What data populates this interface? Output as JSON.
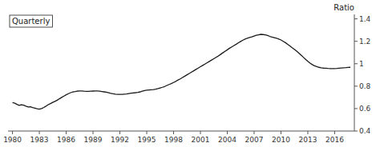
{
  "chart_data": {
    "type": "line",
    "title": "Quarterly",
    "y_label": "Ratio",
    "color": "#1a1a1a",
    "grid": false,
    "xlim": [
      1979.5,
      2018.2
    ],
    "ylim": [
      0.4,
      1.44
    ],
    "xticks": [
      1980,
      1983,
      1986,
      1989,
      1992,
      1995,
      1998,
      2001,
      2004,
      2007,
      2010,
      2013,
      2016
    ],
    "yticks": [
      0.4,
      0.6,
      0.8,
      1,
      1.2,
      1.4
    ],
    "x": [
      1980.0,
      1980.25,
      1980.5,
      1980.75,
      1981.0,
      1981.25,
      1981.5,
      1981.75,
      1982.0,
      1982.25,
      1982.5,
      1982.75,
      1983.0,
      1983.25,
      1983.5,
      1983.75,
      1984.0,
      1984.25,
      1984.5,
      1984.75,
      1985.0,
      1985.25,
      1985.5,
      1985.75,
      1986.0,
      1986.25,
      1986.5,
      1986.75,
      1987.0,
      1987.25,
      1987.5,
      1987.75,
      1988.0,
      1988.25,
      1988.5,
      1988.75,
      1989.0,
      1989.25,
      1989.5,
      1989.75,
      1990.0,
      1990.25,
      1990.5,
      1990.75,
      1991.0,
      1991.25,
      1991.5,
      1991.75,
      1992.0,
      1992.25,
      1992.5,
      1992.75,
      1993.0,
      1993.25,
      1993.5,
      1993.75,
      1994.0,
      1994.25,
      1994.5,
      1994.75,
      1995.0,
      1995.25,
      1995.5,
      1995.75,
      1996.0,
      1996.25,
      1996.5,
      1996.75,
      1997.0,
      1997.25,
      1997.5,
      1997.75,
      1998.0,
      1998.25,
      1998.5,
      1998.75,
      1999.0,
      1999.25,
      1999.5,
      1999.75,
      2000.0,
      2000.25,
      2000.5,
      2000.75,
      2001.0,
      2001.25,
      2001.5,
      2001.75,
      2002.0,
      2002.25,
      2002.5,
      2002.75,
      2003.0,
      2003.25,
      2003.5,
      2003.75,
      2004.0,
      2004.25,
      2004.5,
      2004.75,
      2005.0,
      2005.25,
      2005.5,
      2005.75,
      2006.0,
      2006.25,
      2006.5,
      2006.75,
      2007.0,
      2007.25,
      2007.5,
      2007.75,
      2008.0,
      2008.25,
      2008.5,
      2008.75,
      2009.0,
      2009.25,
      2009.5,
      2009.75,
      2010.0,
      2010.25,
      2010.5,
      2010.75,
      2011.0,
      2011.25,
      2011.5,
      2011.75,
      2012.0,
      2012.25,
      2012.5,
      2012.75,
      2013.0,
      2013.25,
      2013.5,
      2013.75,
      2014.0,
      2014.25,
      2014.5,
      2014.75,
      2015.0,
      2015.25,
      2015.5,
      2015.75,
      2016.0,
      2016.25,
      2016.5,
      2016.75,
      2017.0,
      2017.25,
      2017.5,
      2017.75
    ],
    "values": [
      0.653,
      0.648,
      0.638,
      0.629,
      0.635,
      0.63,
      0.622,
      0.615,
      0.617,
      0.61,
      0.604,
      0.598,
      0.595,
      0.6,
      0.61,
      0.622,
      0.635,
      0.645,
      0.655,
      0.665,
      0.675,
      0.688,
      0.7,
      0.712,
      0.723,
      0.733,
      0.742,
      0.749,
      0.752,
      0.756,
      0.757,
      0.757,
      0.755,
      0.754,
      0.754,
      0.755,
      0.756,
      0.757,
      0.757,
      0.755,
      0.752,
      0.749,
      0.746,
      0.741,
      0.736,
      0.732,
      0.729,
      0.727,
      0.727,
      0.727,
      0.729,
      0.731,
      0.734,
      0.737,
      0.74,
      0.742,
      0.745,
      0.749,
      0.755,
      0.761,
      0.764,
      0.766,
      0.768,
      0.769,
      0.773,
      0.778,
      0.784,
      0.79,
      0.797,
      0.806,
      0.815,
      0.823,
      0.833,
      0.843,
      0.855,
      0.865,
      0.877,
      0.889,
      0.901,
      0.913,
      0.925,
      0.937,
      0.949,
      0.961,
      0.973,
      0.985,
      0.997,
      1.009,
      1.021,
      1.033,
      1.045,
      1.057,
      1.069,
      1.083,
      1.097,
      1.111,
      1.124,
      1.138,
      1.15,
      1.162,
      1.174,
      1.187,
      1.199,
      1.21,
      1.22,
      1.228,
      1.234,
      1.24,
      1.247,
      1.254,
      1.258,
      1.262,
      1.26,
      1.258,
      1.252,
      1.244,
      1.238,
      1.233,
      1.228,
      1.22,
      1.212,
      1.2,
      1.188,
      1.173,
      1.158,
      1.143,
      1.128,
      1.112,
      1.094,
      1.076,
      1.058,
      1.04,
      1.022,
      1.006,
      0.992,
      0.982,
      0.974,
      0.968,
      0.964,
      0.961,
      0.96,
      0.958,
      0.957,
      0.956,
      0.957,
      0.958,
      0.96,
      0.962,
      0.964,
      0.965,
      0.967,
      0.968
    ]
  }
}
